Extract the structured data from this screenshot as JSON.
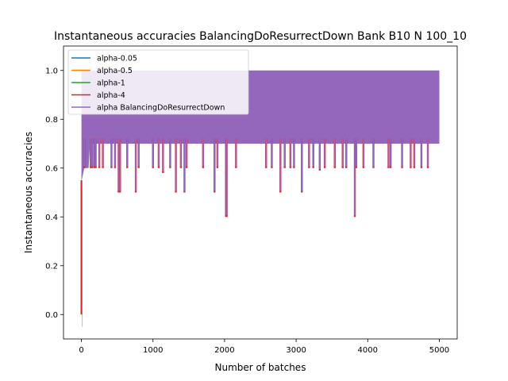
{
  "chart_data": {
    "type": "line",
    "title": "Instantaneous accuracies BalancingDoResurrectDown Bank B10 N 100_10",
    "xlabel": "Number of batches",
    "ylabel": "Instantaneous accuracies",
    "xlim": [
      -250,
      5250
    ],
    "ylim": [
      -0.1,
      1.1
    ],
    "xticks": [
      0,
      1000,
      2000,
      3000,
      4000,
      5000
    ],
    "yticks": [
      0.0,
      0.2,
      0.4,
      0.6,
      0.8,
      1.0
    ],
    "xtick_labels": [
      "0",
      "1000",
      "2000",
      "3000",
      "4000",
      "5000"
    ],
    "ytick_labels": [
      "0.0",
      "0.2",
      "0.4",
      "0.6",
      "0.8",
      "1.0"
    ],
    "grid": false,
    "legend_position": "upper-left",
    "band": {
      "x_start": 0,
      "x_end": 5000,
      "upper": 1.0,
      "typical_lower": 0.7,
      "early_ramp": [
        [
          0,
          0.0
        ],
        [
          5,
          0.55
        ],
        [
          40,
          0.6
        ],
        [
          100,
          0.6
        ],
        [
          120,
          0.7
        ]
      ]
    },
    "dips": [
      {
        "x": 40,
        "y": 0.6
      },
      {
        "x": 130,
        "y": 0.6
      },
      {
        "x": 150,
        "y": 0.6
      },
      {
        "x": 180,
        "y": 0.6
      },
      {
        "x": 200,
        "y": 0.6
      },
      {
        "x": 250,
        "y": 0.6
      },
      {
        "x": 300,
        "y": 0.6
      },
      {
        "x": 420,
        "y": 0.6
      },
      {
        "x": 470,
        "y": 0.6
      },
      {
        "x": 520,
        "y": 0.5
      },
      {
        "x": 540,
        "y": 0.5
      },
      {
        "x": 640,
        "y": 0.6
      },
      {
        "x": 760,
        "y": 0.5
      },
      {
        "x": 800,
        "y": 0.6
      },
      {
        "x": 1000,
        "y": 0.6
      },
      {
        "x": 1080,
        "y": 0.6
      },
      {
        "x": 1140,
        "y": 0.58
      },
      {
        "x": 1240,
        "y": 0.6
      },
      {
        "x": 1320,
        "y": 0.5
      },
      {
        "x": 1390,
        "y": 0.6
      },
      {
        "x": 1440,
        "y": 0.5
      },
      {
        "x": 1470,
        "y": 0.6
      },
      {
        "x": 1700,
        "y": 0.6
      },
      {
        "x": 1860,
        "y": 0.5
      },
      {
        "x": 1900,
        "y": 0.6
      },
      {
        "x": 2020,
        "y": 0.4
      },
      {
        "x": 2030,
        "y": 0.4
      },
      {
        "x": 2160,
        "y": 0.6
      },
      {
        "x": 2580,
        "y": 0.6
      },
      {
        "x": 2660,
        "y": 0.6
      },
      {
        "x": 2780,
        "y": 0.5
      },
      {
        "x": 2840,
        "y": 0.6
      },
      {
        "x": 2920,
        "y": 0.6
      },
      {
        "x": 2970,
        "y": 0.6
      },
      {
        "x": 3080,
        "y": 0.5
      },
      {
        "x": 3180,
        "y": 0.6
      },
      {
        "x": 3240,
        "y": 0.6
      },
      {
        "x": 3330,
        "y": 0.59
      },
      {
        "x": 3400,
        "y": 0.6
      },
      {
        "x": 3540,
        "y": 0.6
      },
      {
        "x": 3650,
        "y": 0.6
      },
      {
        "x": 3700,
        "y": 0.6
      },
      {
        "x": 3820,
        "y": 0.4
      },
      {
        "x": 3840,
        "y": 0.6
      },
      {
        "x": 3940,
        "y": 0.6
      },
      {
        "x": 4080,
        "y": 0.6
      },
      {
        "x": 4290,
        "y": 0.6
      },
      {
        "x": 4320,
        "y": 0.6
      },
      {
        "x": 4480,
        "y": 0.6
      },
      {
        "x": 4600,
        "y": 0.6
      },
      {
        "x": 4650,
        "y": 0.6
      },
      {
        "x": 4750,
        "y": 0.6
      },
      {
        "x": 4840,
        "y": 0.6
      }
    ],
    "series": [
      {
        "name": "alpha-0.05",
        "color": "#1f77b4"
      },
      {
        "name": "alpha-0.5",
        "color": "#ff7f0e"
      },
      {
        "name": "alpha-1",
        "color": "#2ca02c"
      },
      {
        "name": "alpha-4",
        "color": "#d62728"
      },
      {
        "name": "alpha BalancingDoResurrectDown",
        "color": "#9467bd"
      }
    ]
  }
}
